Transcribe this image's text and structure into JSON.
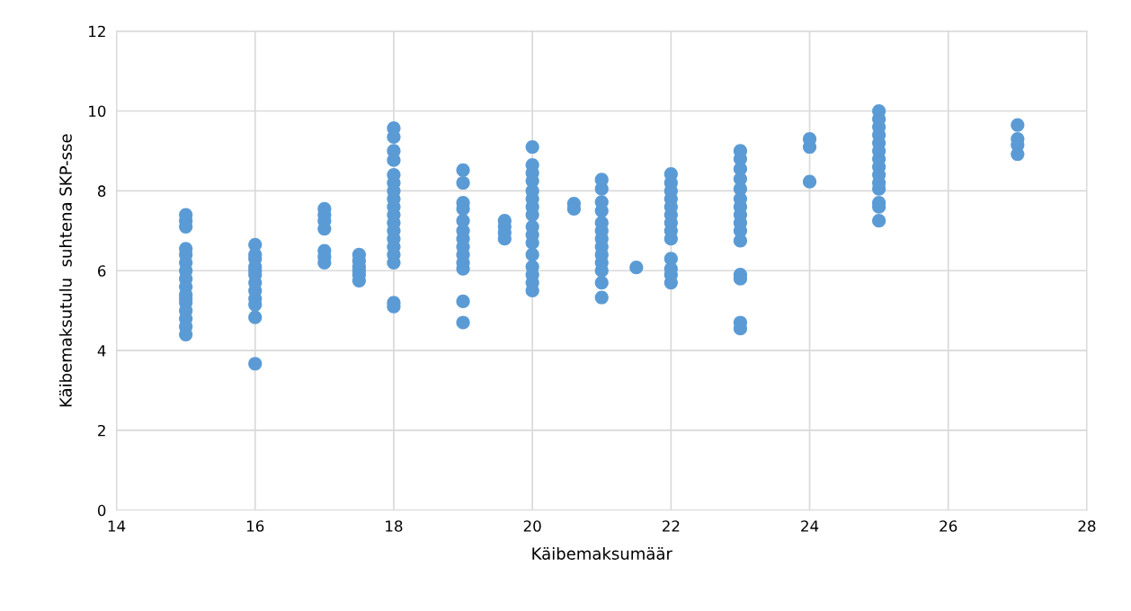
{
  "chart_data": {
    "type": "scatter",
    "xlabel": "Käibemaksumäär",
    "ylabel": "Käibemaksutulu  suhtena SKP-sse",
    "xlim": [
      14,
      28
    ],
    "xticks": [
      14,
      16,
      18,
      20,
      22,
      24,
      26,
      28
    ],
    "ylim": [
      0,
      12
    ],
    "yticks": [
      0,
      2,
      4,
      6,
      8,
      10,
      12
    ],
    "grid": true,
    "marker": "circle",
    "series": [
      {
        "color": "#5b9bd5",
        "x": [
          15,
          15,
          15,
          15,
          15,
          15,
          15,
          15,
          15,
          15,
          15,
          15,
          15,
          15,
          15,
          15,
          16,
          16,
          16,
          16,
          16,
          16,
          16,
          16,
          16,
          16,
          16,
          16,
          17,
          17,
          17,
          17,
          17,
          17,
          17,
          17.5,
          17.5,
          17.5,
          17.5,
          17.5,
          17.5,
          18,
          18,
          18,
          18,
          18,
          18,
          18,
          18,
          18,
          18,
          18,
          18,
          18,
          18,
          18,
          18,
          18,
          18,
          19,
          19,
          19,
          19,
          19,
          19,
          19,
          19,
          19,
          19,
          19,
          19,
          19,
          19.6,
          19.6,
          19.6,
          19.6,
          20,
          20,
          20,
          20,
          20,
          20,
          20,
          20,
          20,
          20,
          20,
          20,
          20,
          20,
          20,
          20,
          20.6,
          20.6,
          21,
          21,
          21,
          21,
          21,
          21,
          21,
          21,
          21,
          21,
          21,
          21,
          21,
          21.5,
          22,
          22,
          22,
          22,
          22,
          22,
          22,
          22,
          22,
          22,
          22,
          22,
          22,
          23,
          23,
          23,
          23,
          23,
          23,
          23,
          23,
          23,
          23,
          23,
          23,
          23,
          23,
          23,
          24,
          24,
          24,
          25,
          25,
          25,
          25,
          25,
          25,
          25,
          25,
          25,
          25,
          25,
          25,
          25,
          25,
          27,
          27,
          27,
          27
        ],
        "values": [
          7.4,
          7.25,
          7.1,
          6.55,
          6.4,
          6.2,
          6.0,
          5.8,
          5.6,
          5.4,
          5.2,
          5.0,
          4.8,
          4.6,
          4.4,
          5.3,
          6.65,
          6.4,
          6.3,
          6.1,
          6.0,
          5.9,
          5.7,
          5.5,
          5.3,
          5.15,
          4.83,
          3.67,
          7.55,
          7.4,
          7.25,
          7.05,
          6.5,
          6.35,
          6.2,
          6.4,
          6.25,
          6.1,
          6.0,
          5.9,
          5.75,
          9.57,
          9.35,
          9.0,
          8.77,
          8.4,
          8.2,
          8.0,
          7.8,
          7.6,
          7.4,
          7.2,
          7.0,
          6.8,
          6.6,
          6.4,
          6.2,
          5.2,
          5.1,
          8.52,
          8.2,
          7.7,
          7.55,
          7.25,
          7.0,
          6.8,
          6.6,
          6.4,
          6.2,
          6.05,
          5.23,
          4.7,
          7.25,
          7.1,
          6.95,
          6.8,
          9.1,
          8.65,
          8.45,
          8.25,
          8.0,
          7.8,
          7.6,
          7.4,
          7.1,
          6.9,
          6.7,
          6.4,
          6.1,
          5.9,
          5.7,
          5.5,
          7.68,
          7.55,
          8.28,
          8.05,
          7.72,
          7.5,
          7.2,
          7.0,
          6.8,
          6.6,
          6.4,
          6.2,
          6.0,
          5.7,
          5.33,
          6.08,
          8.42,
          8.2,
          8.0,
          7.8,
          7.6,
          7.4,
          7.2,
          7.0,
          6.8,
          6.3,
          6.05,
          5.9,
          5.7,
          9.0,
          8.8,
          8.55,
          8.3,
          8.05,
          7.8,
          7.6,
          7.4,
          7.2,
          7.0,
          6.75,
          5.9,
          5.8,
          4.7,
          4.55,
          9.3,
          9.1,
          8.23,
          10.0,
          9.8,
          9.6,
          9.4,
          9.2,
          9.0,
          8.8,
          8.6,
          8.4,
          8.2,
          8.05,
          7.7,
          7.6,
          7.25,
          9.65,
          9.3,
          9.15,
          8.92
        ]
      }
    ]
  }
}
